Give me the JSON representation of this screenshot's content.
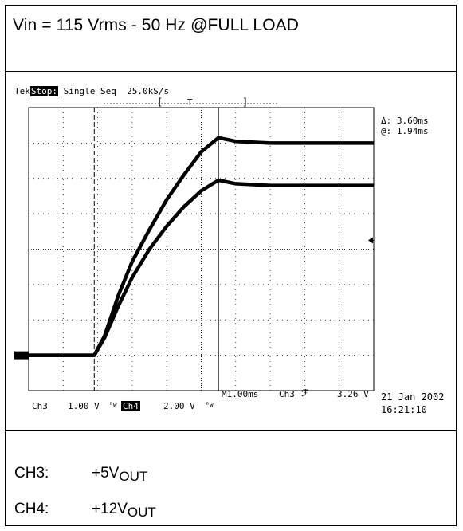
{
  "title": "Vin = 115 Vrms - 50 Hz @FULL LOAD",
  "scope": {
    "header_prefix": "Tek",
    "header_stop": "Stop:",
    "header_rest": " Single Seq  25.0kS/s",
    "delta": "Δ: 3.60ms",
    "at": "@: 1.94ms",
    "ch3_label": "Ch3",
    "ch3_scale": "1.00 V",
    "ch4_label": "Ch4",
    "ch4_scale": "2.00 V",
    "bw_symbol": "ᴮw",
    "timebase": "M1.00ms",
    "trigger_source": "Ch3",
    "trigger_level": "3.26 V",
    "date": "21 Jan 2002",
    "time": "16:21:10"
  },
  "legend": [
    {
      "channel": "CH3:",
      "value_main": "+5V",
      "value_sub": "OUT"
    },
    {
      "channel": "CH4:",
      "value_main": "+12V",
      "value_sub": "OUT"
    }
  ],
  "chart_data": {
    "type": "line",
    "x_divisions": 10,
    "y_divisions": 8,
    "x_unit": "ms",
    "x_per_division": 1.0,
    "y_unit": "div",
    "xlim": [
      0,
      10
    ],
    "ylim": [
      -4,
      4
    ],
    "ground_level": -3,
    "series": [
      {
        "name": "CH3",
        "x": [
          0,
          1.9,
          2.2,
          2.6,
          3.0,
          3.5,
          4.0,
          4.5,
          5.0,
          5.5,
          6.0,
          7.0,
          10.0
        ],
        "y": [
          -3,
          -3,
          -2.5,
          -1.6,
          -0.8,
          0,
          0.65,
          1.2,
          1.65,
          1.95,
          1.85,
          1.8,
          1.8
        ]
      },
      {
        "name": "CH4",
        "x": [
          0,
          1.9,
          2.2,
          2.6,
          3.0,
          3.5,
          4.0,
          4.5,
          5.0,
          5.5,
          6.0,
          7.0,
          10.0
        ],
        "y": [
          -3,
          -3,
          -2.45,
          -1.3,
          -0.35,
          0.55,
          1.4,
          2.1,
          2.75,
          3.15,
          3.05,
          3.0,
          3.0
        ]
      }
    ],
    "cursors_ms": [
      1.9,
      5.5
    ],
    "trigger_marker_level": 0.25
  }
}
